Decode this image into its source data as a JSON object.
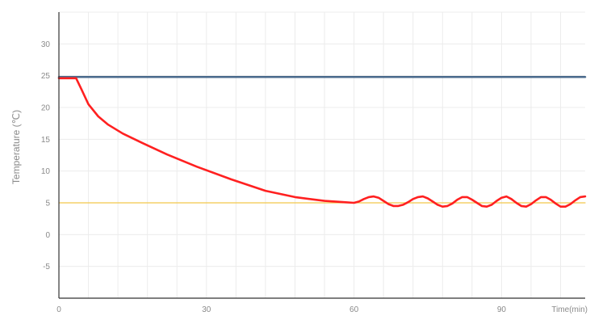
{
  "chart_data": {
    "type": "line",
    "title": "",
    "xlabel": "Time(min)",
    "ylabel": "Temperature (℃)",
    "xlim": [
      0,
      107
    ],
    "ylim": [
      -10,
      35
    ],
    "x_ticks": [
      0,
      30,
      60,
      90
    ],
    "y_ticks": [
      30,
      25,
      20,
      15,
      10,
      5,
      0,
      -5
    ],
    "grid": true,
    "legend": "none",
    "series": [
      {
        "color": "#4a6a8c",
        "x": [
          0,
          107
        ],
        "y": [
          24.8,
          24.8
        ]
      },
      {
        "color": "#f2c84b",
        "x": [
          0,
          107
        ],
        "y": [
          5,
          5
        ]
      },
      {
        "color": "#ff2020",
        "x": [
          0,
          2,
          3.5,
          4.5,
          6,
          8,
          10,
          13,
          17,
          22,
          28,
          35,
          42,
          48,
          54,
          58,
          60,
          61,
          62,
          63,
          64,
          65,
          66,
          67,
          68,
          69,
          70,
          71,
          72,
          73,
          74,
          75,
          76,
          77,
          78,
          79,
          80,
          81,
          82,
          83,
          84,
          85,
          86,
          87,
          88,
          89,
          90,
          91,
          92,
          93,
          94,
          95,
          96,
          97,
          98,
          99,
          100,
          101,
          102,
          103,
          104,
          105,
          106,
          107
        ],
        "y": [
          24.6,
          24.6,
          24.6,
          23.0,
          20.5,
          18.6,
          17.3,
          15.9,
          14.4,
          12.6,
          10.7,
          8.7,
          6.9,
          5.9,
          5.3,
          5.1,
          5.0,
          5.2,
          5.6,
          5.9,
          6.0,
          5.8,
          5.3,
          4.8,
          4.5,
          4.5,
          4.7,
          5.1,
          5.6,
          5.9,
          6.0,
          5.7,
          5.2,
          4.7,
          4.4,
          4.5,
          4.9,
          5.5,
          5.9,
          5.9,
          5.5,
          5.0,
          4.5,
          4.4,
          4.7,
          5.3,
          5.8,
          6.0,
          5.6,
          5.0,
          4.5,
          4.4,
          4.8,
          5.4,
          5.9,
          5.9,
          5.5,
          4.9,
          4.4,
          4.4,
          4.8,
          5.4,
          5.9,
          6.0
        ]
      }
    ]
  }
}
